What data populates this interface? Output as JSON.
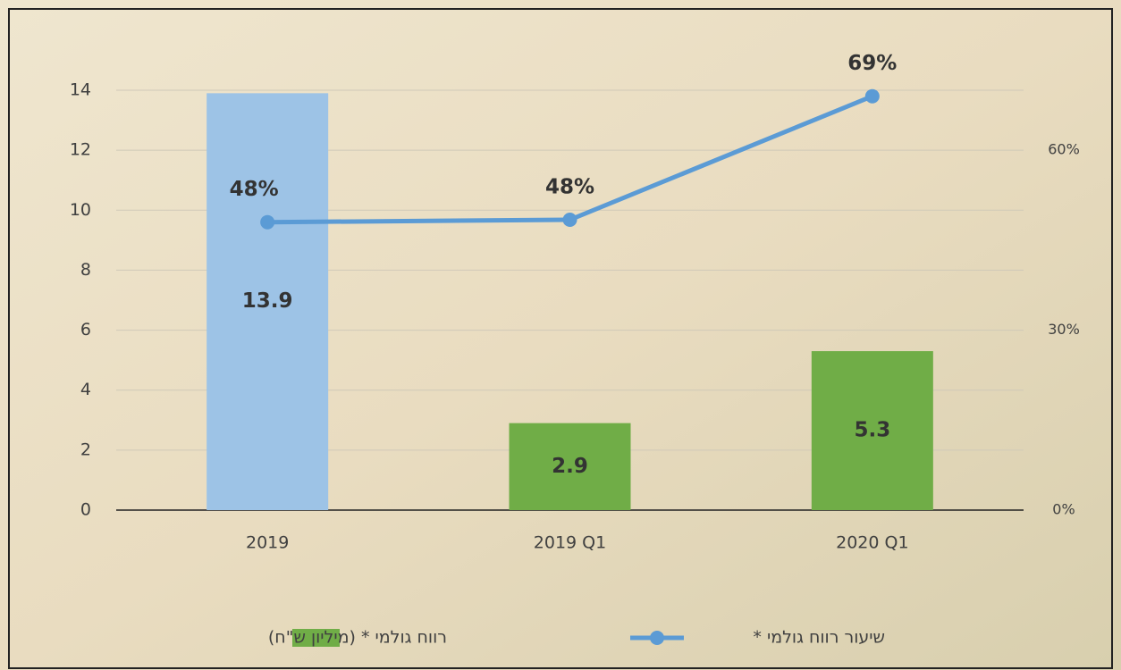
{
  "chart_data": {
    "type": "bar-line",
    "categories": [
      "2019",
      "2019 Q1",
      "2020 Q1"
    ],
    "series": [
      {
        "name": "רווח גולמי * (מיליון ש\"ח)",
        "type": "bar",
        "color": "#70ad47",
        "colors": [
          "#9dc3e6",
          "#70ad47",
          "#70ad47"
        ],
        "values": [
          13.9,
          2.9,
          5.3
        ]
      },
      {
        "name": "שיעור רווח גולמי *",
        "type": "line",
        "axis": "y2",
        "color": "#5b9bd5",
        "values": [
          48,
          48.4,
          69
        ],
        "value_labels": [
          "48%",
          "48%",
          "69%"
        ]
      }
    ],
    "ylim": [
      0,
      14
    ],
    "yticks": [
      0,
      2,
      4,
      6,
      8,
      10,
      12,
      14
    ],
    "y2lim": [
      0,
      70
    ],
    "y2ticks": [
      {
        "value": 0,
        "label": "0%"
      },
      {
        "value": 30,
        "label": "30%"
      },
      {
        "value": 60,
        "label": "60%"
      }
    ],
    "grid": true
  }
}
